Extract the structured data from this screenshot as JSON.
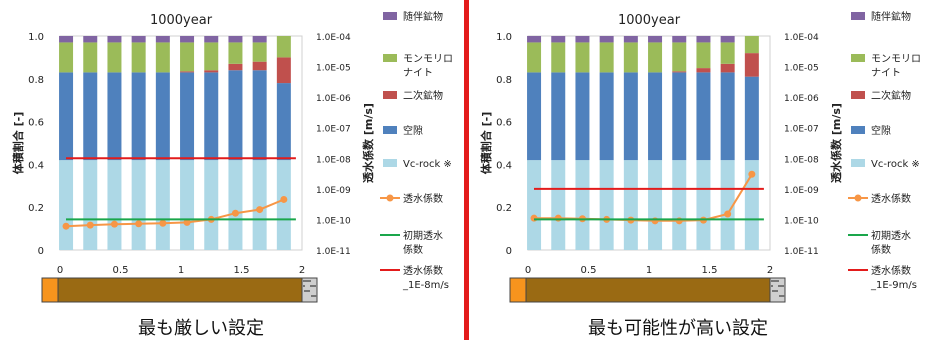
{
  "divider_color": "#e31b1b",
  "legend_labels": [
    "随伴鉱物",
    "モンモリロ",
    "ナイト",
    "二次鉱物",
    "空隙",
    "Vc-rock ※",
    "透水係数",
    "初期透水",
    "係数"
  ],
  "chart_data": [
    {
      "type": "bar",
      "title": "1000year",
      "xlabel": "",
      "ylabel": "体積割合 [-]",
      "y2label": "透水係数 [m/s]",
      "ylim": [
        0,
        1.0
      ],
      "yticks": [
        "0",
        "0.2",
        "0.4",
        "0.6",
        "0.8",
        "1.0"
      ],
      "xlim": [
        0,
        2
      ],
      "xticks": [
        "0",
        "0.5",
        "1",
        "1.5",
        "2"
      ],
      "y2scale": "log",
      "y2ticks": [
        "1.0E-04",
        "1.0E-05",
        "1.0E-06",
        "1.0E-07",
        "1.0E-08",
        "1.0E-09",
        "1.0E-10",
        "1.0E-11"
      ],
      "grid": false,
      "legend_position": "right",
      "caption": "最も厳しい設定",
      "x": [
        0.05,
        0.25,
        0.45,
        0.65,
        0.85,
        1.05,
        1.25,
        1.45,
        1.65,
        1.85
      ],
      "series": [
        {
          "name": "Vc-rock ※",
          "color": "#add8e6",
          "values": [
            0.42,
            0.42,
            0.42,
            0.42,
            0.42,
            0.42,
            0.42,
            0.42,
            0.42,
            0.42
          ]
        },
        {
          "name": "空隙",
          "color": "#4f81bd",
          "values": [
            0.41,
            0.41,
            0.41,
            0.41,
            0.41,
            0.41,
            0.41,
            0.42,
            0.42,
            0.36
          ]
        },
        {
          "name": "二次鉱物",
          "color": "#c0504d",
          "values": [
            0,
            0,
            0,
            0,
            0,
            0.005,
            0.01,
            0.03,
            0.04,
            0.12
          ]
        },
        {
          "name": "モンモリロナイト",
          "color": "#9bbb59",
          "values": [
            0.14,
            0.14,
            0.14,
            0.14,
            0.14,
            0.135,
            0.13,
            0.1,
            0.09,
            0.1
          ]
        },
        {
          "name": "随伴鉱物",
          "color": "#8064a2",
          "values": [
            0.03,
            0.03,
            0.03,
            0.03,
            0.03,
            0.03,
            0.03,
            0.03,
            0.03,
            0
          ]
        }
      ],
      "lines": [
        {
          "name": "透水係数",
          "color": "#f79646",
          "marker": true,
          "x": [
            0.05,
            0.25,
            0.45,
            0.65,
            0.85,
            1.05,
            1.25,
            1.45,
            1.65,
            1.85
          ],
          "values": [
            6e-11,
            6.5e-11,
            7e-11,
            7.2e-11,
            7.5e-11,
            8e-11,
            1e-10,
            1.6e-10,
            2.1e-10,
            4.5e-10
          ]
        },
        {
          "name": "初期透水係数",
          "color": "#1aa64b",
          "marker": false,
          "x": [
            0.05,
            1.95
          ],
          "values": [
            1e-10,
            1e-10
          ]
        },
        {
          "name": "透水係数_1E-8m/s",
          "color": "#e31b1b",
          "marker": false,
          "x": [
            0.05,
            1.95
          ],
          "values": [
            1e-08,
            1e-08
          ]
        }
      ]
    },
    {
      "type": "bar",
      "title": "1000year",
      "xlabel": "",
      "ylabel": "体積割合 [-]",
      "y2label": "透水係数 [m/s]",
      "ylim": [
        0,
        1.0
      ],
      "yticks": [
        "0",
        "0.2",
        "0.4",
        "0.6",
        "0.8",
        "1.0"
      ],
      "xlim": [
        0,
        2
      ],
      "xticks": [
        "0",
        "0.5",
        "1",
        "1.5",
        "2"
      ],
      "y2scale": "log",
      "y2ticks": [
        "1.0E-04",
        "1.0E-05",
        "1.0E-06",
        "1.0E-07",
        "1.0E-08",
        "1.0E-09",
        "1.0E-10",
        "1.0E-11"
      ],
      "grid": false,
      "legend_position": "right",
      "caption": "最も可能性が高い設定",
      "x": [
        0.05,
        0.25,
        0.45,
        0.65,
        0.85,
        1.05,
        1.25,
        1.45,
        1.65,
        1.85
      ],
      "series": [
        {
          "name": "Vc-rock ※",
          "color": "#add8e6",
          "values": [
            0.42,
            0.42,
            0.42,
            0.42,
            0.42,
            0.42,
            0.42,
            0.42,
            0.42,
            0.42
          ]
        },
        {
          "name": "空隙",
          "color": "#4f81bd",
          "values": [
            0.41,
            0.41,
            0.41,
            0.41,
            0.41,
            0.41,
            0.41,
            0.41,
            0.41,
            0.39
          ]
        },
        {
          "name": "二次鉱物",
          "color": "#c0504d",
          "values": [
            0,
            0,
            0,
            0,
            0,
            0,
            0.005,
            0.02,
            0.04,
            0.11
          ]
        },
        {
          "name": "モンモリロナイト",
          "color": "#9bbb59",
          "values": [
            0.14,
            0.14,
            0.14,
            0.14,
            0.14,
            0.14,
            0.135,
            0.12,
            0.1,
            0.08
          ]
        },
        {
          "name": "随伴鉱物",
          "color": "#8064a2",
          "values": [
            0.03,
            0.03,
            0.03,
            0.03,
            0.03,
            0.03,
            0.03,
            0.03,
            0.03,
            0
          ]
        }
      ],
      "lines": [
        {
          "name": "透水係数",
          "color": "#f79646",
          "marker": true,
          "x": [
            0.05,
            0.25,
            0.45,
            0.65,
            0.85,
            1.05,
            1.25,
            1.45,
            1.65,
            1.85
          ],
          "values": [
            1.1e-10,
            1.1e-10,
            1.05e-10,
            1e-10,
            9.5e-11,
            9e-11,
            9e-11,
            9.5e-11,
            1.5e-10,
            3e-09
          ]
        },
        {
          "name": "初期透水係数",
          "color": "#1aa64b",
          "marker": false,
          "x": [
            0.05,
            1.95
          ],
          "values": [
            1e-10,
            1e-10
          ]
        },
        {
          "name": "透水係数_1E-9m/s",
          "color": "#e31b1b",
          "marker": false,
          "x": [
            0.05,
            1.95
          ],
          "values": [
            1e-09,
            1e-09
          ]
        }
      ]
    }
  ],
  "strips": [
    {
      "left_color": "#f7941d",
      "main_color": "#9a6a13",
      "end_pattern": "gravel-texture"
    },
    {
      "left_color": "#f7941d",
      "main_color": "#9a6a13",
      "end_pattern": "gravel-texture"
    }
  ]
}
